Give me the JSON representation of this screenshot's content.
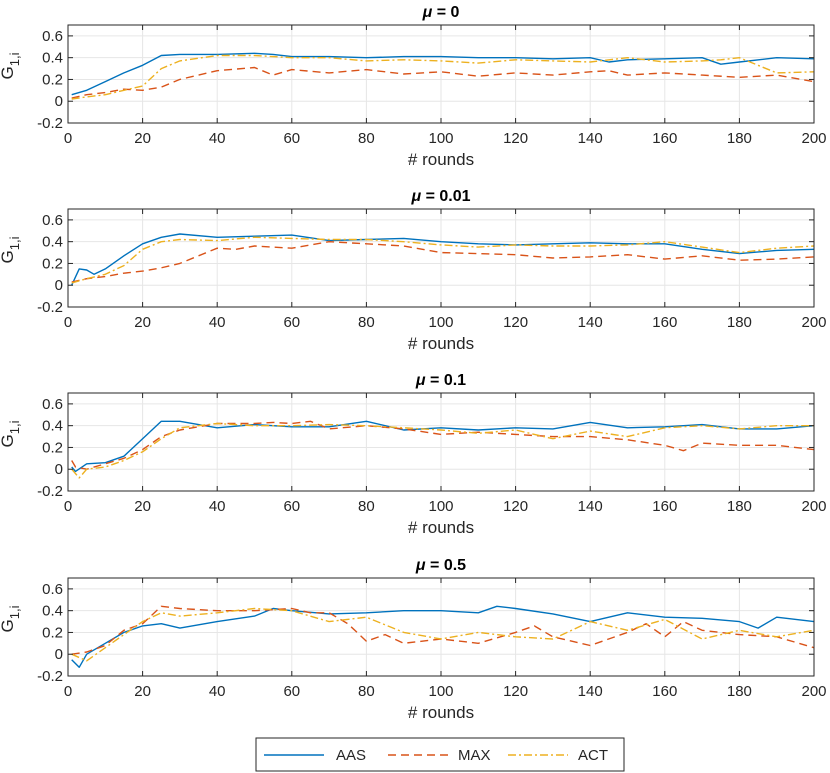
{
  "chart_data": [
    {
      "type": "line",
      "title": "μ = 0",
      "title_symbol": "μ",
      "title_rest": " = 0",
      "xlabel": "# rounds",
      "ylabel_main": "G",
      "ylabel_sub": "1,i",
      "xlim": [
        0,
        200
      ],
      "ylim": [
        -0.2,
        0.7
      ],
      "xticks": [
        0,
        20,
        40,
        60,
        80,
        100,
        120,
        140,
        160,
        180,
        200
      ],
      "yticks": [
        -0.2,
        0,
        0.2,
        0.4,
        0.6
      ],
      "ytick_labels": [
        "-0.2",
        "0",
        "0.2",
        "0.4",
        "0.6"
      ],
      "grid": true,
      "series": [
        {
          "name": "AAS",
          "x": [
            1,
            5,
            10,
            15,
            20,
            25,
            30,
            40,
            50,
            55,
            60,
            70,
            80,
            90,
            100,
            110,
            120,
            130,
            140,
            145,
            150,
            160,
            170,
            175,
            180,
            190,
            200
          ],
          "values": [
            0.06,
            0.1,
            0.18,
            0.26,
            0.33,
            0.42,
            0.43,
            0.43,
            0.44,
            0.43,
            0.41,
            0.41,
            0.4,
            0.41,
            0.41,
            0.4,
            0.4,
            0.39,
            0.4,
            0.36,
            0.38,
            0.39,
            0.4,
            0.34,
            0.36,
            0.4,
            0.39
          ]
        },
        {
          "name": "MAX",
          "x": [
            1,
            5,
            10,
            15,
            20,
            25,
            30,
            40,
            50,
            55,
            60,
            70,
            80,
            90,
            100,
            110,
            120,
            130,
            140,
            145,
            150,
            160,
            170,
            180,
            190,
            200
          ],
          "values": [
            0.03,
            0.06,
            0.08,
            0.11,
            0.1,
            0.13,
            0.2,
            0.28,
            0.31,
            0.24,
            0.29,
            0.26,
            0.29,
            0.25,
            0.27,
            0.23,
            0.26,
            0.24,
            0.27,
            0.28,
            0.24,
            0.26,
            0.24,
            0.22,
            0.24,
            0.18
          ]
        },
        {
          "name": "ACT",
          "x": [
            1,
            5,
            10,
            15,
            20,
            25,
            30,
            40,
            50,
            60,
            70,
            80,
            90,
            100,
            110,
            120,
            130,
            140,
            150,
            160,
            170,
            175,
            180,
            190,
            200
          ],
          "values": [
            0.02,
            0.04,
            0.06,
            0.1,
            0.14,
            0.3,
            0.37,
            0.42,
            0.42,
            0.4,
            0.4,
            0.37,
            0.38,
            0.37,
            0.35,
            0.38,
            0.37,
            0.36,
            0.4,
            0.36,
            0.37,
            0.38,
            0.4,
            0.26,
            0.27
          ]
        }
      ]
    },
    {
      "type": "line",
      "title": "μ = 0.01",
      "title_symbol": "μ",
      "title_rest": " = 0.01",
      "xlabel": "# rounds",
      "ylabel_main": "G",
      "ylabel_sub": "1,i",
      "xlim": [
        0,
        200
      ],
      "ylim": [
        -0.2,
        0.7
      ],
      "xticks": [
        0,
        20,
        40,
        60,
        80,
        100,
        120,
        140,
        160,
        180,
        200
      ],
      "yticks": [
        -0.2,
        0,
        0.2,
        0.4,
        0.6
      ],
      "ytick_labels": [
        "-0.2",
        "0",
        "0.2",
        "0.4",
        "0.6"
      ],
      "grid": true,
      "series": [
        {
          "name": "AAS",
          "x": [
            1,
            3,
            5,
            7,
            10,
            15,
            20,
            25,
            30,
            40,
            50,
            60,
            70,
            80,
            90,
            100,
            110,
            120,
            130,
            140,
            150,
            160,
            170,
            180,
            190,
            200
          ],
          "values": [
            0.0,
            0.15,
            0.14,
            0.1,
            0.15,
            0.27,
            0.38,
            0.44,
            0.47,
            0.44,
            0.45,
            0.46,
            0.41,
            0.42,
            0.43,
            0.4,
            0.38,
            0.37,
            0.38,
            0.39,
            0.38,
            0.38,
            0.33,
            0.29,
            0.32,
            0.33
          ]
        },
        {
          "name": "MAX",
          "x": [
            1,
            5,
            10,
            15,
            20,
            25,
            30,
            40,
            45,
            50,
            60,
            70,
            80,
            90,
            100,
            110,
            120,
            130,
            140,
            150,
            160,
            170,
            180,
            190,
            200
          ],
          "values": [
            0.03,
            0.06,
            0.08,
            0.11,
            0.13,
            0.16,
            0.2,
            0.34,
            0.33,
            0.36,
            0.34,
            0.4,
            0.38,
            0.36,
            0.3,
            0.29,
            0.28,
            0.25,
            0.26,
            0.28,
            0.24,
            0.27,
            0.23,
            0.24,
            0.26
          ]
        },
        {
          "name": "ACT",
          "x": [
            1,
            5,
            10,
            15,
            20,
            25,
            30,
            40,
            50,
            60,
            70,
            80,
            90,
            100,
            110,
            120,
            130,
            140,
            150,
            160,
            170,
            180,
            190,
            200
          ],
          "values": [
            0.02,
            0.06,
            0.1,
            0.18,
            0.33,
            0.4,
            0.42,
            0.41,
            0.44,
            0.43,
            0.42,
            0.42,
            0.4,
            0.37,
            0.35,
            0.37,
            0.36,
            0.36,
            0.37,
            0.4,
            0.35,
            0.3,
            0.34,
            0.36
          ]
        }
      ]
    },
    {
      "type": "line",
      "title": "μ = 0.1",
      "title_symbol": "μ",
      "title_rest": " = 0.1",
      "xlabel": "# rounds",
      "ylabel_main": "G",
      "ylabel_sub": "1,i",
      "xlim": [
        0,
        200
      ],
      "ylim": [
        -0.2,
        0.7
      ],
      "xticks": [
        0,
        20,
        40,
        60,
        80,
        100,
        120,
        140,
        160,
        180,
        200
      ],
      "yticks": [
        -0.2,
        0,
        0.2,
        0.4,
        0.6
      ],
      "ytick_labels": [
        "-0.2",
        "0",
        "0.2",
        "0.4",
        "0.6"
      ],
      "grid": true,
      "series": [
        {
          "name": "AAS",
          "x": [
            1,
            2,
            5,
            10,
            15,
            20,
            25,
            30,
            40,
            50,
            60,
            70,
            80,
            90,
            100,
            110,
            120,
            130,
            140,
            150,
            160,
            170,
            180,
            190,
            200
          ],
          "values": [
            0.02,
            -0.02,
            0.05,
            0.06,
            0.12,
            0.28,
            0.44,
            0.44,
            0.38,
            0.41,
            0.39,
            0.39,
            0.44,
            0.36,
            0.38,
            0.36,
            0.38,
            0.37,
            0.43,
            0.38,
            0.39,
            0.41,
            0.37,
            0.37,
            0.4
          ]
        },
        {
          "name": "MAX",
          "x": [
            1,
            2,
            5,
            10,
            15,
            20,
            25,
            30,
            40,
            50,
            55,
            60,
            65,
            70,
            80,
            90,
            100,
            110,
            120,
            130,
            140,
            150,
            160,
            165,
            170,
            180,
            190,
            200
          ],
          "values": [
            0.08,
            0.02,
            0.0,
            0.05,
            0.1,
            0.18,
            0.3,
            0.36,
            0.42,
            0.42,
            0.43,
            0.42,
            0.44,
            0.37,
            0.4,
            0.37,
            0.32,
            0.34,
            0.32,
            0.3,
            0.3,
            0.27,
            0.22,
            0.17,
            0.24,
            0.22,
            0.22,
            0.18
          ]
        },
        {
          "name": "ACT",
          "x": [
            1,
            3,
            5,
            10,
            15,
            20,
            25,
            30,
            40,
            50,
            60,
            70,
            80,
            90,
            100,
            110,
            120,
            130,
            140,
            150,
            160,
            170,
            180,
            190,
            200
          ],
          "values": [
            0.0,
            -0.08,
            0.0,
            0.02,
            0.08,
            0.16,
            0.28,
            0.38,
            0.42,
            0.4,
            0.4,
            0.41,
            0.4,
            0.38,
            0.36,
            0.33,
            0.36,
            0.28,
            0.35,
            0.3,
            0.38,
            0.4,
            0.37,
            0.4,
            0.4
          ]
        }
      ]
    },
    {
      "type": "line",
      "title": "μ = 0.5",
      "title_symbol": "μ",
      "title_rest": " = 0.5",
      "xlabel": "# rounds",
      "ylabel_main": "G",
      "ylabel_sub": "1,i",
      "xlim": [
        0,
        200
      ],
      "ylim": [
        -0.2,
        0.7
      ],
      "xticks": [
        0,
        20,
        40,
        60,
        80,
        100,
        120,
        140,
        160,
        180,
        200
      ],
      "yticks": [
        -0.2,
        0,
        0.2,
        0.4,
        0.6
      ],
      "ytick_labels": [
        "-0.2",
        "0",
        "0.2",
        "0.4",
        "0.6"
      ],
      "grid": true,
      "series": [
        {
          "name": "AAS",
          "x": [
            1,
            3,
            5,
            10,
            15,
            20,
            25,
            30,
            40,
            50,
            55,
            60,
            70,
            80,
            90,
            100,
            110,
            115,
            120,
            130,
            140,
            150,
            160,
            170,
            180,
            185,
            190,
            200
          ],
          "values": [
            -0.05,
            -0.12,
            0.0,
            0.1,
            0.2,
            0.26,
            0.28,
            0.24,
            0.3,
            0.35,
            0.42,
            0.4,
            0.37,
            0.38,
            0.4,
            0.4,
            0.38,
            0.44,
            0.42,
            0.37,
            0.3,
            0.38,
            0.34,
            0.33,
            0.3,
            0.24,
            0.34,
            0.3
          ]
        },
        {
          "name": "MAX",
          "x": [
            1,
            5,
            10,
            15,
            20,
            25,
            30,
            40,
            50,
            60,
            65,
            70,
            75,
            80,
            85,
            90,
            100,
            110,
            120,
            125,
            130,
            140,
            150,
            155,
            160,
            165,
            170,
            180,
            190,
            200
          ],
          "values": [
            0.0,
            0.02,
            0.08,
            0.22,
            0.28,
            0.44,
            0.42,
            0.4,
            0.4,
            0.42,
            0.38,
            0.38,
            0.28,
            0.12,
            0.18,
            0.1,
            0.14,
            0.1,
            0.2,
            0.26,
            0.16,
            0.08,
            0.2,
            0.28,
            0.16,
            0.3,
            0.22,
            0.18,
            0.16,
            0.06
          ]
        },
        {
          "name": "ACT",
          "x": [
            1,
            5,
            10,
            15,
            20,
            25,
            30,
            40,
            50,
            60,
            70,
            80,
            90,
            100,
            110,
            120,
            130,
            140,
            150,
            160,
            170,
            180,
            190,
            200
          ],
          "values": [
            0.0,
            -0.06,
            0.06,
            0.18,
            0.3,
            0.38,
            0.35,
            0.38,
            0.42,
            0.4,
            0.3,
            0.34,
            0.2,
            0.14,
            0.2,
            0.16,
            0.14,
            0.3,
            0.22,
            0.32,
            0.14,
            0.22,
            0.16,
            0.22
          ]
        }
      ]
    }
  ],
  "legend": {
    "location": "bottom-center",
    "entries": [
      "AAS",
      "MAX",
      "ACT"
    ]
  },
  "colors": {
    "AAS": "#0072BD",
    "MAX": "#D95319",
    "ACT": "#EDB120",
    "grid": "#e6e6e6",
    "axis": "#262626"
  },
  "line_styles": {
    "AAS": "solid",
    "MAX": "dashed",
    "ACT": "dash-dot"
  }
}
